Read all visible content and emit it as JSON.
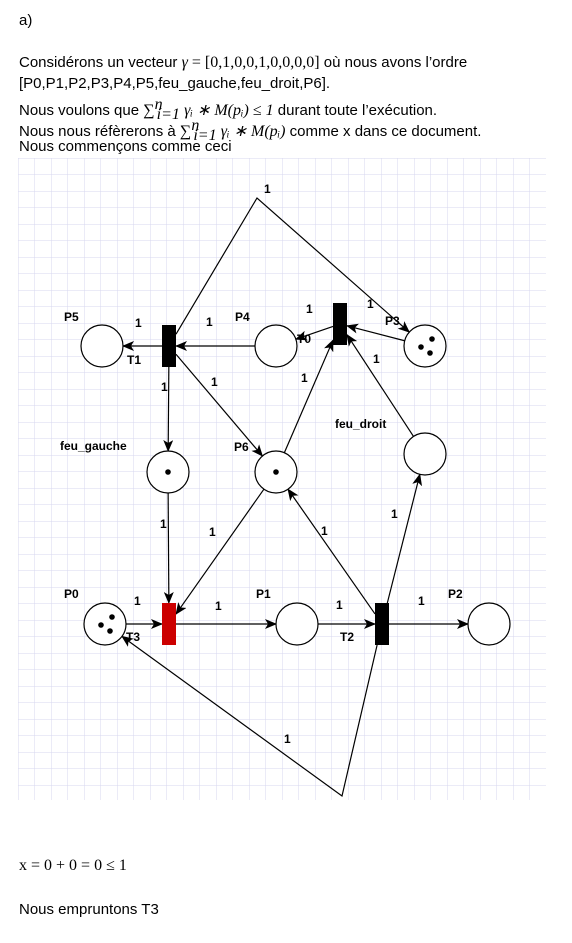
{
  "heading": "a)",
  "intro": {
    "line1_prefix": "Considérons un vecteur ",
    "gamma_symbol": "γ",
    "gamma_value": " = [0,1,0,0,1,0,0,0,0]",
    "line1_suffix": " où nous avons l’ordre",
    "order_list": "[P0,P1,P2,P3,P4,P5,feu_gauche,feu_droit,P6].",
    "condition_prefix": "Nous voulons que ",
    "sum_expression": "γᵢ ∗ M(pᵢ) ≤ 1",
    "condition_suffix": " durant toute l’exécution.",
    "reference_prefix": "Nous nous réfèrerons à ",
    "reference_expression": "γᵢ ∗ M(pᵢ)",
    "reference_suffix": " comme x dans ce document.",
    "start_text": "Nous commençons comme ceci",
    "sum_upper": "n",
    "sum_lower": "i=1",
    "sum_sign": "∑"
  },
  "petri_net": {
    "places": [
      {
        "id": "P0",
        "label": "P0",
        "tokens": 3
      },
      {
        "id": "P1",
        "label": "P1",
        "tokens": 0
      },
      {
        "id": "P2",
        "label": "P2",
        "tokens": 0
      },
      {
        "id": "P3",
        "label": "P3",
        "tokens": 3
      },
      {
        "id": "P4",
        "label": "P4",
        "tokens": 0
      },
      {
        "id": "P5",
        "label": "P5",
        "tokens": 0
      },
      {
        "id": "P6",
        "label": "P6",
        "tokens": 1
      },
      {
        "id": "feu_gauche",
        "label": "feu_gauche",
        "tokens": 1
      },
      {
        "id": "feu_droit",
        "label": "feu_droit",
        "tokens": 0
      }
    ],
    "transitions": [
      {
        "id": "T0",
        "label": "T0",
        "color": "#000000"
      },
      {
        "id": "T1",
        "label": "T1",
        "color": "#000000"
      },
      {
        "id": "T2",
        "label": "T2",
        "color": "#000000"
      },
      {
        "id": "T3",
        "label": "T3",
        "color": "#cc0000",
        "highlighted": true
      }
    ],
    "arcs": [
      {
        "from": "T1",
        "to": "P3",
        "weight": "1"
      },
      {
        "from": "P4",
        "to": "T1",
        "weight": "1"
      },
      {
        "from": "T1",
        "to": "P5",
        "weight": "1"
      },
      {
        "from": "T1",
        "to": "feu_gauche",
        "weight": "1"
      },
      {
        "from": "T1",
        "to": "P6",
        "weight": "1"
      },
      {
        "from": "T0",
        "to": "P4",
        "weight": "1"
      },
      {
        "from": "P3",
        "to": "T0",
        "weight": "1"
      },
      {
        "from": "feu_droit",
        "to": "T0",
        "weight": "1"
      },
      {
        "from": "P6",
        "to": "T0",
        "weight": "1"
      },
      {
        "from": "feu_gauche",
        "to": "T3",
        "weight": "1"
      },
      {
        "from": "P6",
        "to": "T3",
        "weight": "1"
      },
      {
        "from": "P0",
        "to": "T3",
        "weight": "1"
      },
      {
        "from": "T3",
        "to": "P1",
        "weight": "1"
      },
      {
        "from": "P1",
        "to": "T2",
        "weight": "1"
      },
      {
        "from": "T2",
        "to": "P2",
        "weight": "1"
      },
      {
        "from": "T2",
        "to": "feu_droit",
        "weight": "1"
      },
      {
        "from": "T2",
        "to": "P6",
        "weight": "1"
      },
      {
        "from": "T2",
        "to": "P0",
        "weight": "1"
      }
    ]
  },
  "result_expression": "x = 0 + 0 = 0  ≤ 1",
  "next_step": "Nous empruntons T3"
}
